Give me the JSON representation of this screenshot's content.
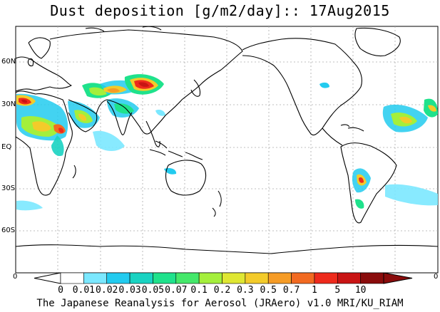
{
  "title": "Dust deposition [g/m2/day]:: 17Aug2015",
  "lat_labels": [
    "60N",
    "30N",
    "EQ",
    "30S",
    "60S"
  ],
  "corner_labels": {
    "left": "0",
    "right": "0"
  },
  "colorbar": {
    "labels": [
      "0",
      "0.01",
      "0.02",
      "0.03",
      "0.05",
      "0.07",
      "0.1",
      "0.2",
      "0.3",
      "0.5",
      "0.7",
      "1",
      "5",
      "10"
    ],
    "colors": [
      "#ffffff",
      "#7be8ff",
      "#22cbef",
      "#19d3c2",
      "#1fe28c",
      "#44e86a",
      "#a4ef3c",
      "#dfe733",
      "#f3cb2a",
      "#f69c26",
      "#f26a21",
      "#ee2a1c",
      "#c91414",
      "#8a0c0c"
    ],
    "underflow_color": "#ffffff",
    "overflow_color": "#8a0c0c"
  },
  "footer": "The Japanese Reanalysis for Aerosol (JRAero) v1.0 MRI/KU_RIAM"
}
